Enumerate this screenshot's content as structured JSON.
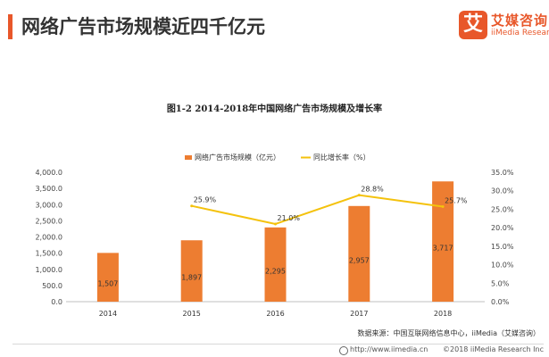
{
  "header": {
    "title": "网络广告市场规模近四千亿元",
    "logo_mark": "艾",
    "logo_cn": "艾媒咨询",
    "logo_en": "iiMedia Research"
  },
  "colors": {
    "bar": "#ed7d31",
    "line": "#f4c20d",
    "accent": "#e8572a"
  },
  "chart_data": {
    "type": "bar+line",
    "title": "图1-2 2014-2018年中国网络广告市场规模及增长率",
    "categories": [
      "2014",
      "2015",
      "2016",
      "2017",
      "2018"
    ],
    "series": [
      {
        "name": "网络广告市场规模（亿元）",
        "type": "bar",
        "axis": "left",
        "values": [
          1507,
          1897,
          2295,
          2957,
          3717
        ],
        "labels": [
          "1,507",
          "1,897",
          "2,295",
          "2,957",
          "3,717"
        ]
      },
      {
        "name": "同比增长率（%）",
        "type": "line",
        "axis": "right",
        "values": [
          null,
          25.9,
          21.0,
          28.8,
          25.7
        ],
        "labels": [
          "",
          "25.9%",
          "21.0%",
          "28.8%",
          "25.7%"
        ]
      }
    ],
    "y_left": {
      "min": 0,
      "max": 4000,
      "ticks": [
        "0.0",
        "500.0",
        "1,000.0",
        "1,500.0",
        "2,000.0",
        "2,500.0",
        "3,000.0",
        "3,500.0",
        "4,000.0"
      ]
    },
    "y_right": {
      "min": 0,
      "max": 35,
      "ticks": [
        "0.0%",
        "5.0%",
        "10.0%",
        "15.0%",
        "20.0%",
        "25.0%",
        "30.0%",
        "35.0%"
      ]
    },
    "legend_position": "top"
  },
  "source": "数据来源：中国互联网络信息中心，iiMedia（艾媒咨询）",
  "footer": {
    "url": "http://www.iimedia.cn",
    "copyright": "©2018  iiMedia Research  Inc"
  }
}
